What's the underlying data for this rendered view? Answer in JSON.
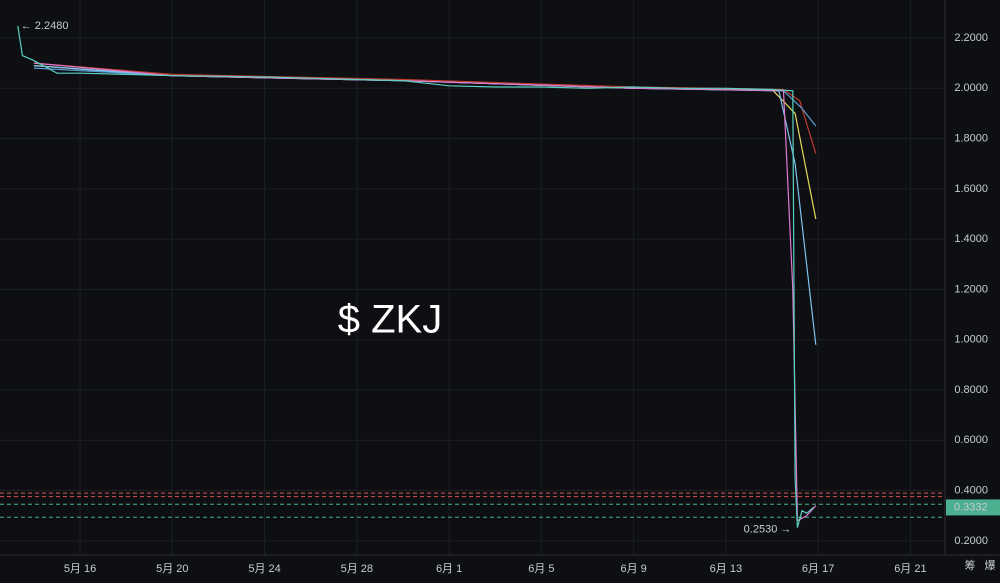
{
  "chart_data": {
    "type": "line",
    "watermark": "$ ZKJ",
    "xlim": [
      12.53,
      53.5
    ],
    "xticks": [
      {
        "value": 16,
        "label": "5月 16"
      },
      {
        "value": 20,
        "label": "5月 20"
      },
      {
        "value": 24,
        "label": "5月 24"
      },
      {
        "value": 28,
        "label": "5月 28"
      },
      {
        "value": 32,
        "label": "6月 1"
      },
      {
        "value": 36,
        "label": "6月 5"
      },
      {
        "value": 40,
        "label": "6月 9"
      },
      {
        "value": 44,
        "label": "6月 13"
      },
      {
        "value": 48,
        "label": "6月 17"
      },
      {
        "value": 52,
        "label": "6月 21"
      }
    ],
    "ylim": [
      0.144,
      2.351
    ],
    "yticks": [
      {
        "value": 0.2,
        "label": "0.2000"
      },
      {
        "value": 0.4,
        "label": "0.4000"
      },
      {
        "value": 0.6,
        "label": "0.6000"
      },
      {
        "value": 0.8,
        "label": "0.8000"
      },
      {
        "value": 1.0,
        "label": "1.0000"
      },
      {
        "value": 1.2,
        "label": "1.2000"
      },
      {
        "value": 1.4,
        "label": "1.4000"
      },
      {
        "value": 1.6,
        "label": "1.6000"
      },
      {
        "value": 1.8,
        "label": "1.8000"
      },
      {
        "value": 2.0,
        "label": "2.0000"
      },
      {
        "value": 2.2,
        "label": "2.2000"
      }
    ],
    "grid": true,
    "series": [
      {
        "color": "#e8d95a",
        "x": [
          14,
          20,
          30,
          40,
          46,
          47,
          47.9
        ],
        "values": [
          2.09,
          2.05,
          2.03,
          2.0,
          1.995,
          1.9,
          1.48
        ]
      },
      {
        "color": "#c0392b",
        "x": [
          14,
          20,
          30,
          40,
          46.5,
          47.2,
          47.9
        ],
        "values": [
          2.1,
          2.055,
          2.035,
          2.005,
          1.995,
          1.95,
          1.74
        ]
      },
      {
        "color": "#5b9bd5",
        "x": [
          14,
          20,
          30,
          40,
          46.5,
          47.3,
          47.9
        ],
        "values": [
          2.08,
          2.05,
          2.03,
          2.0,
          1.99,
          1.92,
          1.85
        ]
      },
      {
        "color": "#7fc4f0",
        "x": [
          14,
          20,
          30,
          40,
          46.3,
          47.0,
          47.9
        ],
        "values": [
          2.09,
          2.05,
          2.03,
          2.0,
          1.99,
          1.7,
          0.98
        ]
      },
      {
        "color": "#e07ad0",
        "x": [
          14,
          20,
          30,
          40,
          46.5,
          46.9,
          47.1,
          47.5,
          47.9
        ],
        "values": [
          2.1,
          2.05,
          2.03,
          2.0,
          1.99,
          1.2,
          0.28,
          0.3,
          0.34
        ]
      },
      {
        "color": "#5ad1c0",
        "x": [
          13.3,
          13.5,
          14,
          15,
          16,
          18,
          20,
          22,
          24,
          26,
          28,
          30,
          32,
          34,
          36,
          38,
          40,
          42,
          44,
          46,
          46.9,
          47.0,
          47.1,
          47.3,
          47.5,
          47.8
        ],
        "values": [
          2.248,
          2.13,
          2.11,
          2.06,
          2.06,
          2.055,
          2.05,
          2.048,
          2.045,
          2.04,
          2.035,
          2.03,
          2.01,
          2.005,
          2.005,
          2.0,
          2.005,
          2.0,
          2.0,
          1.995,
          1.99,
          0.45,
          0.253,
          0.32,
          0.31,
          0.3332
        ]
      }
    ],
    "levels": [
      {
        "value": 0.39,
        "color": "#d9534f"
      },
      {
        "value": 0.376,
        "color": "#d9534f"
      },
      {
        "value": 0.346,
        "color": "#4caf8f"
      },
      {
        "value": 0.294,
        "color": "#4caf8f"
      }
    ],
    "high_marker": {
      "x": 13.3,
      "value": 2.248,
      "label": "← 2.2480"
    },
    "low_marker": {
      "x": 47.1,
      "value": 0.253,
      "label": "0.2530 →"
    },
    "last_price": {
      "value": 0.3332,
      "label": "0.3332",
      "color": "#4caf8f"
    },
    "toolbar": [
      "筹",
      "爆"
    ]
  }
}
